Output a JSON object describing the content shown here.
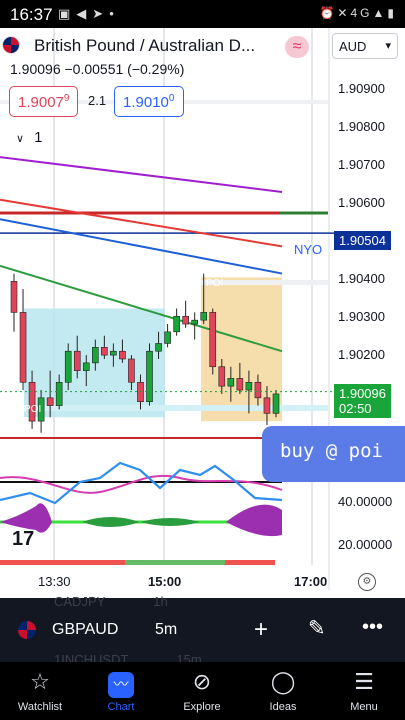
{
  "status_bar": {
    "time": "16:37",
    "left_icons": [
      "image-icon",
      "volume-icon",
      "telegram-icon",
      "dot-icon"
    ],
    "right_icons": [
      "alarm-icon",
      "mute-icon",
      "network-icon",
      "signal-icon",
      "battery-icon"
    ],
    "network_label": "4G"
  },
  "symbol": {
    "title": "British Pound / Australian D...",
    "ohlc": "1.90096",
    "change": "−0.00551 (−0.29%)",
    "currency": "AUD"
  },
  "quotes": {
    "sell": "1.9007",
    "sell_super": "9",
    "spread": "2.1",
    "buy": "1.9010",
    "buy_super": "0"
  },
  "indicator": {
    "count": "1"
  },
  "price_axis": [
    "1.90900",
    "1.90800",
    "1.90700",
    "1.90600",
    "1.90400",
    "1.90300",
    "1.90200"
  ],
  "tags": {
    "level": "1.90504",
    "current_price": "1.90096",
    "countdown": "02:50",
    "level_name": "NYO",
    "poi_top": "POI",
    "poi_bottom": "POI"
  },
  "oscillator_axis": [
    "40.00000",
    "20.00000"
  ],
  "note": "buy @ poi",
  "time_axis": [
    "13:30",
    "15:00",
    "17:00"
  ],
  "ghost_rows": [
    {
      "symbol": "CADJPY",
      "interval": "1h"
    },
    {
      "symbol": "1INCHUSDT",
      "interval": "15m"
    }
  ],
  "toolbar": {
    "pair": "GBPAUD",
    "interval": "5m"
  },
  "nav": [
    {
      "label": "Watchlist",
      "icon": "star-icon"
    },
    {
      "label": "Chart",
      "icon": "chart-icon"
    },
    {
      "label": "Explore",
      "icon": "compass-icon"
    },
    {
      "label": "Ideas",
      "icon": "lightbulb-icon"
    },
    {
      "label": "Menu",
      "icon": "menu-icon"
    }
  ],
  "colors": {
    "sell": "#e0445a",
    "buy": "#2962ff",
    "up": "#1aa53a",
    "down": "#e0445a",
    "level": "#0c3299",
    "note": "#5b7be6",
    "zone_blue": "#b8e6ee",
    "zone_orange": "#f5d9a3"
  },
  "chart_data": {
    "type": "candlestick",
    "x_ticks": [
      "13:30",
      "15:00",
      "17:00"
    ],
    "y_ticks": [
      1.909,
      1.908,
      1.907,
      1.906,
      1.904,
      1.903,
      1.902
    ],
    "ylim": [
      1.9001,
      1.9095
    ],
    "candles": [
      [
        1.9038,
        1.904,
        1.9025,
        1.903
      ],
      [
        1.903,
        1.9036,
        1.901,
        1.9012
      ],
      [
        1.9012,
        1.9015,
        1.9,
        1.9002
      ],
      [
        1.9002,
        1.901,
        1.8999,
        1.9008
      ],
      [
        1.9008,
        1.9015,
        1.9003,
        1.9006
      ],
      [
        1.9006,
        1.9014,
        1.9005,
        1.9012
      ],
      [
        1.9012,
        1.9022,
        1.901,
        1.902
      ],
      [
        1.902,
        1.9024,
        1.9013,
        1.9015
      ],
      [
        1.9015,
        1.9019,
        1.9011,
        1.9017
      ],
      [
        1.9017,
        1.9023,
        1.9015,
        1.9021
      ],
      [
        1.9021,
        1.9024,
        1.9018,
        1.9019
      ],
      [
        1.9019,
        1.9022,
        1.9016,
        1.902
      ],
      [
        1.902,
        1.9023,
        1.9017,
        1.9018
      ],
      [
        1.9018,
        1.9019,
        1.901,
        1.9012
      ],
      [
        1.9012,
        1.9014,
        1.9005,
        1.9007
      ],
      [
        1.9007,
        1.9022,
        1.9006,
        1.902
      ],
      [
        1.902,
        1.9025,
        1.9018,
        1.9022
      ],
      [
        1.9022,
        1.9027,
        1.9021,
        1.9025
      ],
      [
        1.9025,
        1.9031,
        1.9024,
        1.9029
      ],
      [
        1.9029,
        1.9033,
        1.9026,
        1.9027
      ],
      [
        1.9027,
        1.903,
        1.9023,
        1.9028
      ],
      [
        1.9028,
        1.904,
        1.9027,
        1.903
      ],
      [
        1.903,
        1.9031,
        1.9014,
        1.9016
      ],
      [
        1.9016,
        1.9018,
        1.9009,
        1.9011
      ],
      [
        1.9011,
        1.9016,
        1.9007,
        1.9013
      ],
      [
        1.9013,
        1.9017,
        1.9009,
        1.901
      ],
      [
        1.901,
        1.9015,
        1.9004,
        1.9012
      ],
      [
        1.9012,
        1.9014,
        1.9006,
        1.9008
      ],
      [
        1.9008,
        1.9011,
        1.9001,
        1.9004
      ],
      [
        1.9004,
        1.901,
        1.9003,
        1.9009
      ]
    ],
    "lines": [
      {
        "color": "#a020d0",
        "values": [
          1.907,
          1.9061
        ]
      },
      {
        "color": "#e53935",
        "values": [
          1.9059,
          1.9047
        ]
      },
      {
        "color": "#1e5fd6",
        "values": [
          1.9054,
          1.904
        ]
      },
      {
        "color": "#2e9c3e",
        "values": [
          1.9042,
          1.902
        ]
      }
    ],
    "levels": [
      1.90504,
      1.90096
    ],
    "zones": [
      {
        "label": "POI",
        "y_range": [
          1.9003,
          1.9031
        ]
      },
      {
        "label": "POI",
        "y_range": [
          1.9002,
          1.9039
        ]
      }
    ],
    "grid": true
  }
}
